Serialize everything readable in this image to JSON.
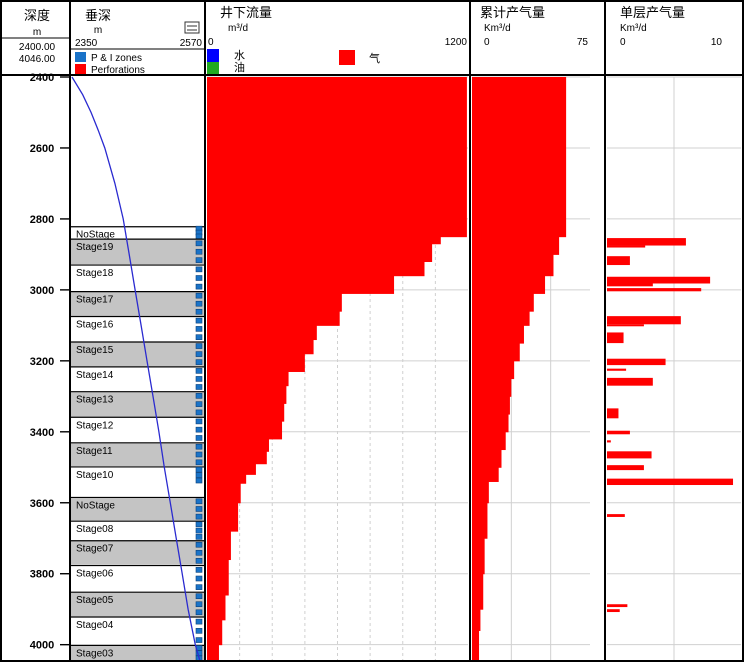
{
  "header": {
    "depth_title": "深度",
    "depth_unit": "m",
    "depth_top": "2400.00",
    "depth_bottom": "4046.00",
    "tvd_title": "垂深",
    "tvd_unit": "m",
    "tvd_min": "2350",
    "tvd_max": "2570",
    "legend_pi_zones": "P & I zones",
    "legend_perforations": "Perforations",
    "flow_title": "井下流量",
    "flow_unit": "m³/d",
    "flow_min": "0",
    "flow_max": "1200",
    "legend_water": "水",
    "legend_oil": "油",
    "legend_gas": "气",
    "cum_title": "累计产气量",
    "cum_unit": "Km³/d",
    "cum_min": "0",
    "cum_max": "75",
    "layer_title": "单层产气量",
    "layer_unit": "Km³/d",
    "layer_min": "0",
    "layer_max": "10"
  },
  "colors": {
    "gas": "#ff0000",
    "water": "#0000ff",
    "oil": "#22aa22",
    "stage_fill": "#c4c4c4",
    "tvd_curve": "#2a2ad0",
    "grid": "#d0d0d0"
  },
  "chart_data": {
    "type": "well-log",
    "depth_axis": {
      "min": 2400,
      "max": 4046,
      "ticks": [
        "2400",
        "2600",
        "2800",
        "3000",
        "3200",
        "3400",
        "3600",
        "3800",
        "4000"
      ]
    },
    "stages": [
      {
        "label": "NoStage",
        "top": 2822,
        "bottom": 2855
      },
      {
        "label": "Stage19",
        "top": 2857,
        "bottom": 2928
      },
      {
        "label": "Stage18",
        "top": 2930,
        "bottom": 3003
      },
      {
        "label": "Stage17",
        "top": 3005,
        "bottom": 3073
      },
      {
        "label": "Stage16",
        "top": 3075,
        "bottom": 3145
      },
      {
        "label": "Stage15",
        "top": 3147,
        "bottom": 3215
      },
      {
        "label": "Stage14",
        "top": 3217,
        "bottom": 3285
      },
      {
        "label": "Stage13",
        "top": 3287,
        "bottom": 3357
      },
      {
        "label": "Stage12",
        "top": 3359,
        "bottom": 3429
      },
      {
        "label": "Stage11",
        "top": 3431,
        "bottom": 3497
      },
      {
        "label": "Stage10",
        "top": 3499,
        "bottom": 3545
      },
      {
        "label": "NoStage",
        "top": 3585,
        "bottom": 3650
      },
      {
        "label": "Stage08",
        "top": 3652,
        "bottom": 3705
      },
      {
        "label": "Stage07",
        "top": 3707,
        "bottom": 3775
      },
      {
        "label": "Stage06",
        "top": 3777,
        "bottom": 3850
      },
      {
        "label": "Stage05",
        "top": 3852,
        "bottom": 3920
      },
      {
        "label": "Stage04",
        "top": 3922,
        "bottom": 4000
      },
      {
        "label": "Stage03",
        "top": 4002,
        "bottom": 4046
      }
    ],
    "tvd_curve": {
      "depth": [
        2400,
        2450,
        2500,
        2550,
        2600,
        2700,
        2800,
        2900,
        3000,
        3100,
        3200,
        3300,
        3400,
        3500,
        3600,
        3700,
        3800,
        3900,
        4000,
        4046
      ],
      "tvd": [
        2350,
        2368,
        2382,
        2394,
        2405,
        2422,
        2436,
        2446,
        2456,
        2466,
        2476,
        2486,
        2496,
        2505,
        2515,
        2525,
        2535,
        2545,
        2557,
        2565
      ]
    },
    "downhole_flow": {
      "xlim": [
        0,
        1200
      ],
      "steps": [
        {
          "top": 2400,
          "bottom": 2850,
          "value": 1195
        },
        {
          "top": 2850,
          "bottom": 2870,
          "value": 1075
        },
        {
          "top": 2870,
          "bottom": 2920,
          "value": 1035
        },
        {
          "top": 2920,
          "bottom": 2960,
          "value": 1000
        },
        {
          "top": 2960,
          "bottom": 3010,
          "value": 860
        },
        {
          "top": 3010,
          "bottom": 3060,
          "value": 620
        },
        {
          "top": 3060,
          "bottom": 3100,
          "value": 610
        },
        {
          "top": 3100,
          "bottom": 3140,
          "value": 505
        },
        {
          "top": 3140,
          "bottom": 3180,
          "value": 490
        },
        {
          "top": 3180,
          "bottom": 3230,
          "value": 450
        },
        {
          "top": 3230,
          "bottom": 3270,
          "value": 375
        },
        {
          "top": 3270,
          "bottom": 3320,
          "value": 365
        },
        {
          "top": 3320,
          "bottom": 3370,
          "value": 355
        },
        {
          "top": 3370,
          "bottom": 3420,
          "value": 345
        },
        {
          "top": 3420,
          "bottom": 3455,
          "value": 285
        },
        {
          "top": 3455,
          "bottom": 3490,
          "value": 275
        },
        {
          "top": 3490,
          "bottom": 3520,
          "value": 225
        },
        {
          "top": 3520,
          "bottom": 3545,
          "value": 180
        },
        {
          "top": 3545,
          "bottom": 3600,
          "value": 155
        },
        {
          "top": 3600,
          "bottom": 3680,
          "value": 143
        },
        {
          "top": 3680,
          "bottom": 3760,
          "value": 110
        },
        {
          "top": 3760,
          "bottom": 3860,
          "value": 100
        },
        {
          "top": 3860,
          "bottom": 3930,
          "value": 85
        },
        {
          "top": 3930,
          "bottom": 4000,
          "value": 70
        },
        {
          "top": 4000,
          "bottom": 4046,
          "value": 55
        }
      ]
    },
    "cumulative_gas": {
      "xlim": [
        0,
        75
      ],
      "steps": [
        {
          "top": 2400,
          "bottom": 2850,
          "value": 67
        },
        {
          "top": 2850,
          "bottom": 2900,
          "value": 62
        },
        {
          "top": 2900,
          "bottom": 2960,
          "value": 58
        },
        {
          "top": 2960,
          "bottom": 3010,
          "value": 52
        },
        {
          "top": 3010,
          "bottom": 3060,
          "value": 44
        },
        {
          "top": 3060,
          "bottom": 3100,
          "value": 41
        },
        {
          "top": 3100,
          "bottom": 3150,
          "value": 37
        },
        {
          "top": 3150,
          "bottom": 3200,
          "value": 34
        },
        {
          "top": 3200,
          "bottom": 3250,
          "value": 30
        },
        {
          "top": 3250,
          "bottom": 3300,
          "value": 28
        },
        {
          "top": 3300,
          "bottom": 3350,
          "value": 27
        },
        {
          "top": 3350,
          "bottom": 3400,
          "value": 26
        },
        {
          "top": 3400,
          "bottom": 3450,
          "value": 24
        },
        {
          "top": 3450,
          "bottom": 3500,
          "value": 21
        },
        {
          "top": 3500,
          "bottom": 3540,
          "value": 19
        },
        {
          "top": 3540,
          "bottom": 3600,
          "value": 12
        },
        {
          "top": 3600,
          "bottom": 3700,
          "value": 11
        },
        {
          "top": 3700,
          "bottom": 3800,
          "value": 9
        },
        {
          "top": 3800,
          "bottom": 3900,
          "value": 8
        },
        {
          "top": 3900,
          "bottom": 3960,
          "value": 6
        },
        {
          "top": 3960,
          "bottom": 4046,
          "value": 5
        }
      ]
    },
    "layer_gas": {
      "xlim": [
        0,
        10
      ],
      "bars": [
        {
          "top": 2854,
          "bottom": 2875,
          "value": 6.2
        },
        {
          "top": 2875,
          "bottom": 2880,
          "value": 3.0
        },
        {
          "top": 2905,
          "bottom": 2930,
          "value": 1.8
        },
        {
          "top": 2963,
          "bottom": 2982,
          "value": 8.1
        },
        {
          "top": 2982,
          "bottom": 2990,
          "value": 3.6
        },
        {
          "top": 2995,
          "bottom": 3004,
          "value": 7.4
        },
        {
          "top": 3074,
          "bottom": 3097,
          "value": 5.8
        },
        {
          "top": 3097,
          "bottom": 3102,
          "value": 2.9
        },
        {
          "top": 3120,
          "bottom": 3150,
          "value": 1.3
        },
        {
          "top": 3194,
          "bottom": 3212,
          "value": 4.6
        },
        {
          "top": 3222,
          "bottom": 3228,
          "value": 1.5
        },
        {
          "top": 3248,
          "bottom": 3270,
          "value": 3.6
        },
        {
          "top": 3334,
          "bottom": 3362,
          "value": 0.9
        },
        {
          "top": 3397,
          "bottom": 3407,
          "value": 1.8
        },
        {
          "top": 3424,
          "bottom": 3430,
          "value": 0.3
        },
        {
          "top": 3455,
          "bottom": 3475,
          "value": 3.5
        },
        {
          "top": 3494,
          "bottom": 3508,
          "value": 2.9
        },
        {
          "top": 3532,
          "bottom": 3550,
          "value": 9.9
        },
        {
          "top": 3632,
          "bottom": 3640,
          "value": 1.4
        },
        {
          "top": 3886,
          "bottom": 3894,
          "value": 1.6
        },
        {
          "top": 3900,
          "bottom": 3908,
          "value": 1.0
        }
      ]
    }
  }
}
